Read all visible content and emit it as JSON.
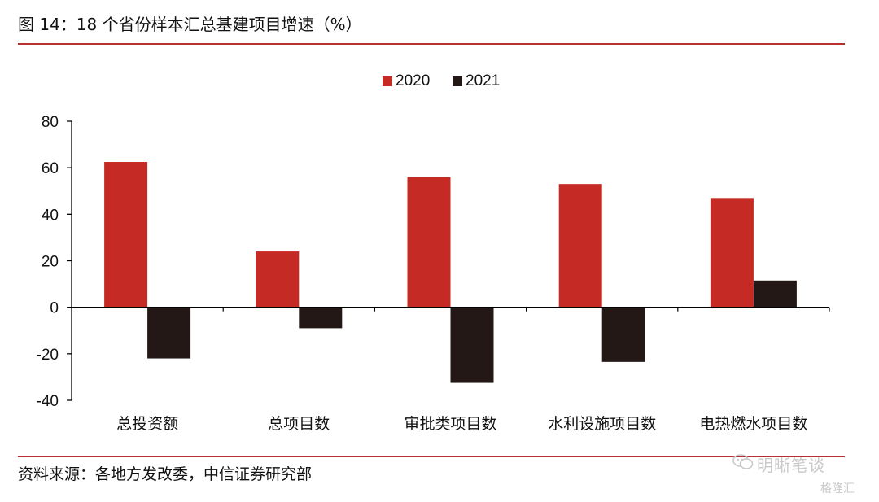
{
  "header": {
    "title": "图 14：18 个省份样本汇总基建项目增速（%）"
  },
  "footer": {
    "source": "资料来源：各地方发改委，中信证券研究部"
  },
  "watermark": {
    "brand": "明晰笔谈",
    "sub": "格隆汇",
    "chat_icon": "wechat-icon"
  },
  "colors": {
    "s2020": "#c62a24",
    "s2021": "#231815",
    "rule": "#b8312f"
  },
  "chart_data": {
    "type": "bar",
    "title": "图 14：18 个省份样本汇总基建项目增速（%）",
    "xlabel": "",
    "ylabel": "",
    "categories": [
      "总投资额",
      "总项目数",
      "审批类项目数",
      "水利设施项目数",
      "电热燃水项目数"
    ],
    "series": [
      {
        "name": "2020",
        "values": [
          62.5,
          24,
          56,
          53,
          47
        ]
      },
      {
        "name": "2021",
        "values": [
          -22,
          -9,
          -32.5,
          -23.5,
          11.5
        ]
      }
    ],
    "ylim": [
      -40,
      80
    ],
    "yticks": [
      80,
      60,
      40,
      20,
      0,
      -20,
      -40
    ],
    "legend": "top-center",
    "grid": false
  }
}
